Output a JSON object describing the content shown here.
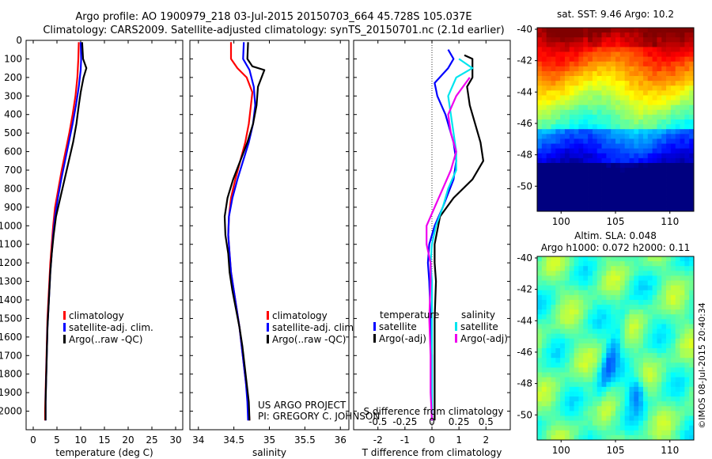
{
  "header": {
    "line1": "Argo profile: AO 1900979_218 03-Jul-2015 20150703_664 45.728S 105.037E",
    "line2": "Climatology: CARS2009. Satellite-adjusted climatology: synTS_20150701.nc (2.1d earlier)"
  },
  "colors": {
    "climatology": "#ff0000",
    "satellite": "#0000ff",
    "argo": "#000000",
    "sat_salinity": "#00e5ee",
    "argo_salinity": "#ee00ee"
  },
  "credit": {
    "line1": "US ARGO PROJECT",
    "line2": "PI: GREGORY C. JOHNSON"
  },
  "stamp": "©IMOS 08-Jul-2015 20:40:34",
  "chart_data": [
    {
      "type": "line",
      "id": "temperature",
      "xlabel": "temperature (deg C)",
      "xticks": [
        0,
        5,
        10,
        15,
        20,
        25,
        30
      ],
      "xlim": [
        -1.5,
        31.5
      ],
      "ylim": [
        2100,
        0
      ],
      "yticks": [
        0,
        100,
        200,
        300,
        400,
        500,
        600,
        700,
        800,
        900,
        1000,
        1100,
        1200,
        1300,
        1400,
        1500,
        1600,
        1700,
        1800,
        1900,
        2000
      ],
      "legend": [
        "climatology",
        "satellite-adj. clim.",
        "Argo(..raw -QC)"
      ],
      "series": [
        {
          "name": "climatology",
          "color": "#ff0000",
          "points": [
            [
              9.6,
              10
            ],
            [
              9.5,
              100
            ],
            [
              9.3,
              200
            ],
            [
              8.9,
              300
            ],
            [
              8.3,
              400
            ],
            [
              7.6,
              500
            ],
            [
              6.8,
              600
            ],
            [
              6.0,
              700
            ],
            [
              5.3,
              800
            ],
            [
              4.6,
              900
            ],
            [
              4.2,
              1000
            ],
            [
              3.9,
              1100
            ],
            [
              3.6,
              1200
            ],
            [
              3.4,
              1300
            ],
            [
              3.2,
              1400
            ],
            [
              3.0,
              1500
            ],
            [
              2.9,
              1600
            ],
            [
              2.8,
              1700
            ],
            [
              2.7,
              1800
            ],
            [
              2.6,
              1900
            ],
            [
              2.5,
              2000
            ],
            [
              2.5,
              2050
            ]
          ]
        },
        {
          "name": "satellite-adj. clim.",
          "color": "#0000ff",
          "points": [
            [
              10.0,
              10
            ],
            [
              10.1,
              100
            ],
            [
              10.0,
              160
            ],
            [
              9.6,
              250
            ],
            [
              9.0,
              350
            ],
            [
              8.3,
              450
            ],
            [
              7.5,
              550
            ],
            [
              6.7,
              650
            ],
            [
              5.9,
              750
            ],
            [
              5.2,
              850
            ],
            [
              4.6,
              950
            ],
            [
              4.2,
              1050
            ],
            [
              3.9,
              1150
            ],
            [
              3.6,
              1250
            ],
            [
              3.4,
              1350
            ],
            [
              3.2,
              1450
            ],
            [
              3.0,
              1550
            ],
            [
              2.9,
              1650
            ],
            [
              2.8,
              1750
            ],
            [
              2.7,
              1850
            ],
            [
              2.6,
              1950
            ],
            [
              2.6,
              2050
            ]
          ]
        },
        {
          "name": "Argo(..raw -QC)",
          "color": "#000000",
          "points": [
            [
              10.3,
              10
            ],
            [
              10.5,
              100
            ],
            [
              11.2,
              150
            ],
            [
              10.6,
              200
            ],
            [
              10.0,
              280
            ],
            [
              9.6,
              350
            ],
            [
              9.1,
              450
            ],
            [
              8.4,
              550
            ],
            [
              7.5,
              650
            ],
            [
              6.6,
              750
            ],
            [
              5.7,
              850
            ],
            [
              4.8,
              950
            ],
            [
              4.3,
              1050
            ],
            [
              3.9,
              1150
            ],
            [
              3.6,
              1250
            ],
            [
              3.4,
              1350
            ],
            [
              3.2,
              1450
            ],
            [
              3.0,
              1550
            ],
            [
              2.9,
              1650
            ],
            [
              2.8,
              1750
            ],
            [
              2.7,
              1850
            ],
            [
              2.6,
              1950
            ],
            [
              2.6,
              2050
            ]
          ]
        }
      ]
    },
    {
      "type": "line",
      "id": "salinity",
      "xlabel": "salinity",
      "xticks": [
        34,
        34.5,
        35,
        35.5,
        36
      ],
      "xlim": [
        33.88,
        36.12
      ],
      "ylim": [
        2100,
        0
      ],
      "legend": [
        "climatology",
        "satellite-adj. clim.",
        "Argo(..raw -QC)"
      ],
      "series": [
        {
          "name": "climatology",
          "color": "#ff0000",
          "points": [
            [
              34.46,
              10
            ],
            [
              34.46,
              100
            ],
            [
              34.55,
              150
            ],
            [
              34.68,
              200
            ],
            [
              34.76,
              280
            ],
            [
              34.74,
              350
            ],
            [
              34.71,
              450
            ],
            [
              34.66,
              550
            ],
            [
              34.59,
              650
            ],
            [
              34.52,
              750
            ],
            [
              34.46,
              850
            ],
            [
              34.43,
              950
            ],
            [
              34.42,
              1050
            ],
            [
              34.44,
              1150
            ],
            [
              34.46,
              1250
            ],
            [
              34.5,
              1350
            ],
            [
              34.54,
              1450
            ],
            [
              34.58,
              1550
            ],
            [
              34.61,
              1650
            ],
            [
              34.64,
              1750
            ],
            [
              34.67,
              1850
            ],
            [
              34.7,
              1950
            ],
            [
              34.72,
              2050
            ]
          ]
        },
        {
          "name": "satellite-adj. clim.",
          "color": "#0000ff",
          "points": [
            [
              34.64,
              10
            ],
            [
              34.63,
              100
            ],
            [
              34.72,
              160
            ],
            [
              34.78,
              250
            ],
            [
              34.8,
              350
            ],
            [
              34.77,
              450
            ],
            [
              34.71,
              550
            ],
            [
              34.63,
              650
            ],
            [
              34.55,
              750
            ],
            [
              34.48,
              850
            ],
            [
              34.43,
              950
            ],
            [
              34.42,
              1050
            ],
            [
              34.44,
              1150
            ],
            [
              34.46,
              1250
            ],
            [
              34.5,
              1350
            ],
            [
              34.54,
              1450
            ],
            [
              34.58,
              1550
            ],
            [
              34.61,
              1650
            ],
            [
              34.64,
              1750
            ],
            [
              34.67,
              1850
            ],
            [
              34.69,
              1950
            ],
            [
              34.7,
              2050
            ]
          ]
        },
        {
          "name": "Argo(..raw -QC)",
          "color": "#000000",
          "points": [
            [
              34.7,
              10
            ],
            [
              34.69,
              100
            ],
            [
              34.76,
              140
            ],
            [
              34.93,
              160
            ],
            [
              34.84,
              250
            ],
            [
              34.82,
              350
            ],
            [
              34.77,
              450
            ],
            [
              34.69,
              550
            ],
            [
              34.59,
              650
            ],
            [
              34.49,
              750
            ],
            [
              34.41,
              850
            ],
            [
              34.37,
              950
            ],
            [
              34.38,
              1050
            ],
            [
              34.42,
              1150
            ],
            [
              34.44,
              1250
            ],
            [
              34.48,
              1350
            ],
            [
              34.53,
              1450
            ],
            [
              34.58,
              1550
            ],
            [
              34.62,
              1650
            ],
            [
              34.65,
              1750
            ],
            [
              34.68,
              1850
            ],
            [
              34.71,
              1950
            ],
            [
              34.72,
              2050
            ]
          ]
        }
      ]
    },
    {
      "type": "line",
      "id": "differences",
      "xlabel": "T difference from climatology",
      "xlabel_top": "S difference from climatology",
      "xticks": [
        -2,
        -1,
        0,
        1,
        2
      ],
      "xticks_top": [
        "-0.5",
        "-0.25",
        "0",
        "0.25",
        "0.5"
      ],
      "xlim": [
        -2.9,
        2.9
      ],
      "ylim": [
        2100,
        0
      ],
      "legend_title_left": "temperature",
      "legend_title_right": "salinity",
      "legend": [
        "satellite",
        "Argo(-adj)",
        "satellite",
        "Argo(-adj)"
      ],
      "series": [
        {
          "name": "temperature satellite",
          "color": "#0000ff",
          "points": [
            [
              0.6,
              50
            ],
            [
              0.8,
              100
            ],
            [
              0.6,
              150
            ],
            [
              0.1,
              230
            ],
            [
              0.2,
              300
            ],
            [
              0.5,
              400
            ],
            [
              0.8,
              550
            ],
            [
              0.9,
              650
            ],
            [
              0.8,
              750
            ],
            [
              0.4,
              900
            ],
            [
              0.1,
              1000
            ],
            [
              -0.1,
              1100
            ],
            [
              -0.15,
              1200
            ],
            [
              -0.1,
              1300
            ],
            [
              -0.05,
              1500
            ],
            [
              0,
              1700
            ],
            [
              0,
              1900
            ],
            [
              0,
              2050
            ]
          ]
        },
        {
          "name": "temperature Argo(-adj)",
          "color": "#000000",
          "points": [
            [
              1.2,
              80
            ],
            [
              1.5,
              100
            ],
            [
              1.5,
              150
            ],
            [
              1.5,
              200
            ],
            [
              1.3,
              250
            ],
            [
              1.4,
              350
            ],
            [
              1.6,
              450
            ],
            [
              1.8,
              550
            ],
            [
              1.9,
              650
            ],
            [
              1.5,
              750
            ],
            [
              0.8,
              850
            ],
            [
              0.3,
              950
            ],
            [
              0.1,
              1100
            ],
            [
              0.1,
              1200
            ],
            [
              0.15,
              1300
            ],
            [
              0.1,
              1500
            ],
            [
              0.1,
              1700
            ],
            [
              0.1,
              1900
            ],
            [
              0.1,
              2050
            ]
          ]
        },
        {
          "name": "salinity satellite",
          "color": "#00e5ee",
          "points": [
            [
              1.0,
              100
            ],
            [
              1.5,
              150
            ],
            [
              0.9,
              200
            ],
            [
              0.6,
              300
            ],
            [
              0.7,
              400
            ],
            [
              0.8,
              500
            ],
            [
              0.9,
              600
            ],
            [
              0.9,
              700
            ],
            [
              0.6,
              800
            ],
            [
              0.4,
              900
            ],
            [
              0.15,
              1000
            ],
            [
              0.0,
              1100
            ],
            [
              -0.05,
              1200
            ],
            [
              0,
              1300
            ],
            [
              0,
              1500
            ],
            [
              0,
              1700
            ],
            [
              0,
              1900
            ],
            [
              0,
              2050
            ]
          ]
        },
        {
          "name": "salinity Argo(-adj)",
          "color": "#ee00ee",
          "points": [
            [
              1.4,
              200
            ],
            [
              0.9,
              300
            ],
            [
              0.6,
              400
            ],
            [
              0.7,
              500
            ],
            [
              0.9,
              600
            ],
            [
              0.7,
              700
            ],
            [
              0.4,
              800
            ],
            [
              0.1,
              900
            ],
            [
              -0.2,
              1000
            ],
            [
              -0.2,
              1100
            ],
            [
              -0.05,
              1200
            ],
            [
              -0.05,
              1300
            ],
            [
              -0.1,
              1500
            ],
            [
              -0.05,
              1700
            ],
            [
              -0.05,
              1900
            ],
            [
              0,
              2050
            ]
          ]
        }
      ]
    },
    {
      "type": "heatmap",
      "id": "sst-map",
      "title": "sat. SST: 9.46 Argo: 10.2",
      "xticks": [
        100,
        105,
        110
      ],
      "yticks": [
        -40,
        -42,
        -44,
        -46,
        -48,
        -50
      ],
      "xlim": [
        97.8,
        112.2
      ],
      "ylim": [
        -51.6,
        -39.9
      ],
      "colormap": "jet"
    },
    {
      "type": "heatmap",
      "id": "sla-map",
      "title": "Altim. SLA: 0.048",
      "subtitle": "Argo h1000: 0.072 h2000: 0.11",
      "xticks": [
        100,
        105,
        110
      ],
      "yticks": [
        -40,
        -42,
        -44,
        -46,
        -48,
        -50
      ],
      "xlim": [
        97.8,
        112.2
      ],
      "ylim": [
        -51.6,
        -39.9
      ],
      "colormap": "jet"
    }
  ]
}
